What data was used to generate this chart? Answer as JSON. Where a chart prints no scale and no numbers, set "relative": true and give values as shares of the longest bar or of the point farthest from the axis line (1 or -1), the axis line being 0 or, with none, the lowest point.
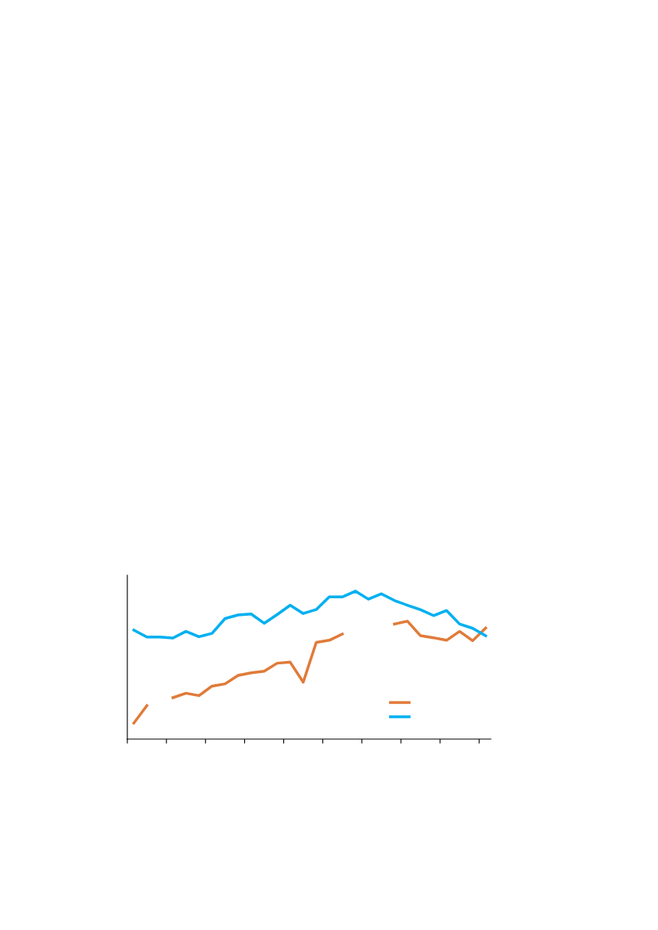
{
  "chart_data": {
    "type": "line",
    "relative": true,
    "categories": [
      null,
      null,
      null,
      null,
      null,
      null,
      null,
      null,
      null,
      null,
      null,
      null,
      null,
      null,
      null,
      null,
      null,
      null,
      null,
      null,
      null,
      null,
      null,
      null,
      null,
      null,
      null,
      null
    ],
    "series": [
      {
        "color": "#e07b39",
        "values": [
          0.108,
          0.226,
          null,
          0.28,
          0.31,
          0.294,
          0.358,
          0.373,
          0.43,
          0.448,
          0.459,
          0.513,
          0.52,
          0.385,
          0.654,
          0.668,
          0.71,
          null,
          null,
          null,
          0.778,
          0.797,
          0.699,
          0.685,
          0.668,
          0.728,
          0.665,
          0.751
        ]
      },
      {
        "color": "#00b0f0",
        "values": [
          0.737,
          0.69,
          0.69,
          0.683,
          0.728,
          0.692,
          0.715,
          0.815,
          0.839,
          0.846,
          0.783,
          0.842,
          0.905,
          0.849,
          0.876,
          0.962,
          0.961,
          1,
          0.946,
          0.982,
          0.937,
          0.905,
          0.875,
          0.835,
          0.869,
          0.778,
          0.749,
          0.699
        ]
      }
    ],
    "grid": false,
    "marker": "none",
    "line_style": "solid"
  }
}
